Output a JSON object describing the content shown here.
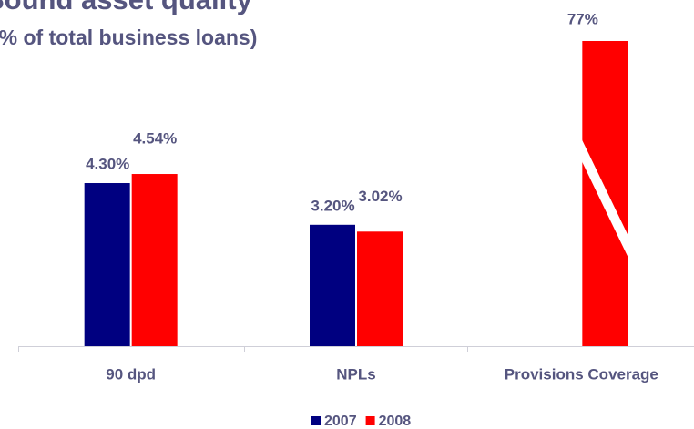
{
  "chart_data": {
    "type": "bar",
    "title": "Sound asset quality",
    "subtitle": "(% of total business loans)",
    "categories": [
      "90 dpd",
      "NPLs",
      "Provisions Coverage"
    ],
    "series": [
      {
        "name": "2007",
        "color": "#000080",
        "values": [
          4.3,
          3.2,
          null
        ],
        "value_labels": [
          "4.30%",
          "3.20%",
          null
        ]
      },
      {
        "name": "2008",
        "color": "#ff0000",
        "values": [
          4.54,
          3.02,
          77
        ],
        "value_labels": [
          "4.54%",
          "3.02%",
          "77%"
        ]
      }
    ],
    "ylim": [
      0,
      8
    ],
    "broken_axis": true,
    "legend": "bottom"
  }
}
